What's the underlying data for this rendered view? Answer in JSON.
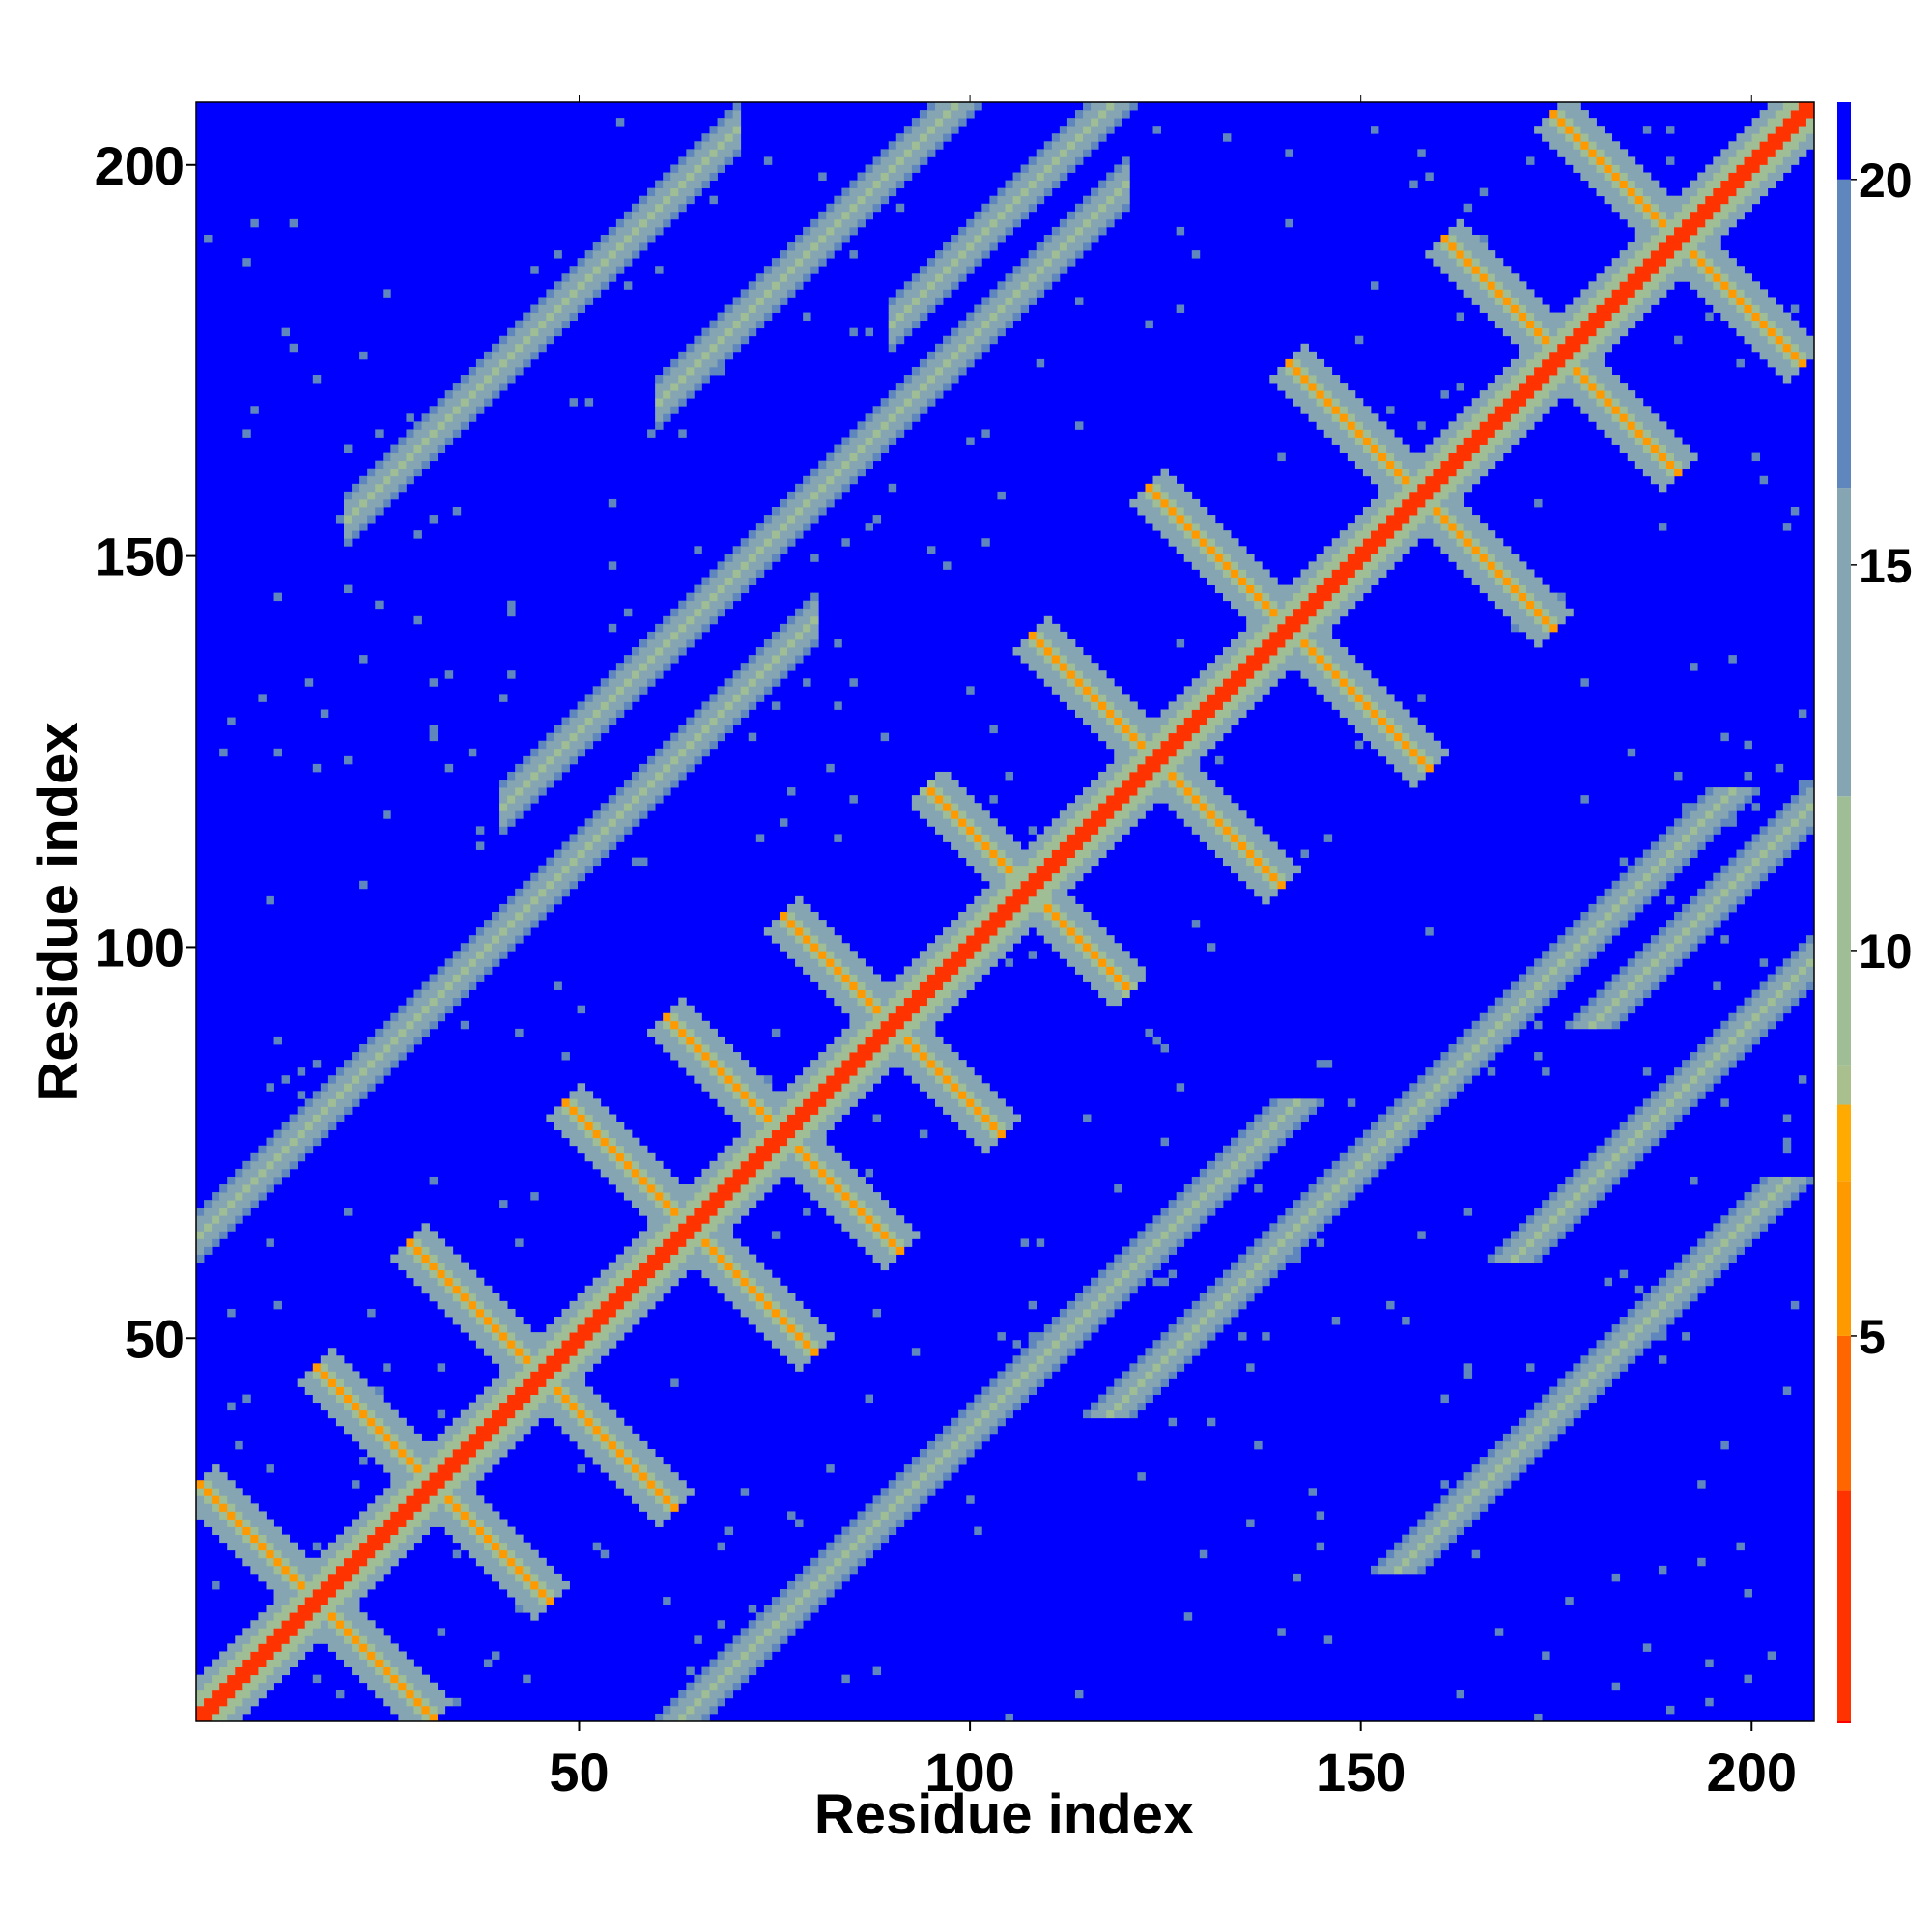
{
  "chart_data": {
    "type": "heatmap",
    "title": "",
    "xlabel": "Residue index",
    "ylabel": "Residue index",
    "xlim": [
      1,
      208
    ],
    "ylim": [
      1,
      208
    ],
    "x_ticks": [
      50,
      100,
      150,
      200
    ],
    "y_ticks": [
      50,
      100,
      150,
      200
    ],
    "value_range": [
      0,
      21
    ],
    "colorbar": {
      "ticks": [
        5,
        10,
        15,
        20
      ],
      "cutoff": 21,
      "stops": [
        {
          "value": 0,
          "color": "#ff0000"
        },
        {
          "value": 3,
          "color": "#ff3300"
        },
        {
          "value": 5,
          "color": "#ff6600"
        },
        {
          "value": 7,
          "color": "#ff9900"
        },
        {
          "value": 8,
          "color": "#ffaa00"
        },
        {
          "value": 8.5,
          "color": "#a9bf8e"
        },
        {
          "value": 12,
          "color": "#9fbe95"
        },
        {
          "value": 16,
          "color": "#86a5b2"
        },
        {
          "value": 20,
          "color": "#5f86bd"
        },
        {
          "value": 21,
          "color": "#0000ff"
        }
      ]
    },
    "background_color": "#0000ff",
    "diagonal_color": "#ff0000",
    "contact_color": "#ff9900",
    "halo_color": "#a3bd93",
    "grid": false
  }
}
